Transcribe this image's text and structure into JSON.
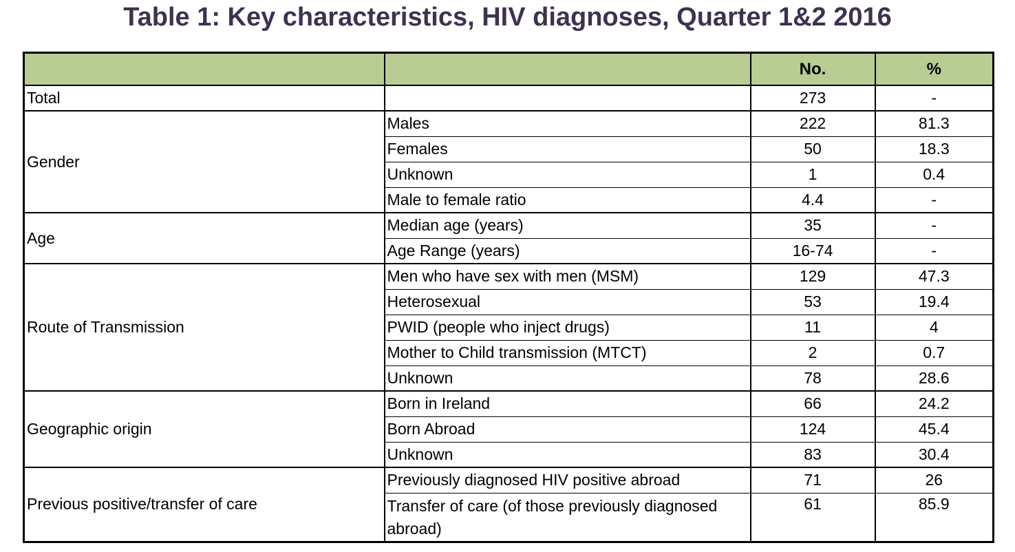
{
  "title": "Table 1: Key characteristics, HIV diagnoses, Quarter 1&2 2016",
  "colors": {
    "header_bg": "#b8cc93",
    "title_text": "#3f3151",
    "border": "#000000"
  },
  "table": {
    "columns": [
      "",
      "",
      "No.",
      "%"
    ],
    "groups": [
      {
        "label": "Total",
        "rows": [
          {
            "sub": "",
            "no": "273",
            "pct": "-"
          }
        ]
      },
      {
        "label": "Gender",
        "rows": [
          {
            "sub": "Males",
            "no": "222",
            "pct": "81.3"
          },
          {
            "sub": "Females",
            "no": "50",
            "pct": "18.3"
          },
          {
            "sub": "Unknown",
            "no": "1",
            "pct": "0.4"
          },
          {
            "sub": "Male to female ratio",
            "no": "4.4",
            "pct": "-"
          }
        ]
      },
      {
        "label": "Age",
        "rows": [
          {
            "sub": "Median age (years)",
            "no": "35",
            "pct": "-"
          },
          {
            "sub": "Age Range (years)",
            "no": "16-74",
            "pct": "-"
          }
        ]
      },
      {
        "label": "Route of Transmission",
        "rows": [
          {
            "sub": "Men who have sex with men (MSM)",
            "no": "129",
            "pct": "47.3"
          },
          {
            "sub": "Heterosexual",
            "no": "53",
            "pct": "19.4"
          },
          {
            "sub": "PWID (people who inject drugs)",
            "no": "11",
            "pct": "4"
          },
          {
            "sub": "Mother to Child transmission (MTCT)",
            "no": "2",
            "pct": "0.7"
          },
          {
            "sub": "Unknown",
            "no": "78",
            "pct": "28.6"
          }
        ]
      },
      {
        "label": "Geographic origin",
        "rows": [
          {
            "sub": "Born in Ireland",
            "no": "66",
            "pct": "24.2"
          },
          {
            "sub": "Born Abroad",
            "no": "124",
            "pct": "45.4"
          },
          {
            "sub": "Unknown",
            "no": "83",
            "pct": "30.4"
          }
        ]
      },
      {
        "label": "Previous positive/transfer of care",
        "rows": [
          {
            "sub": "Previously diagnosed HIV positive abroad",
            "no": "71",
            "pct": "26"
          },
          {
            "sub": "Transfer of care (of those previously diagnosed abroad)",
            "no": "61",
            "pct": "85.9"
          }
        ]
      }
    ]
  }
}
